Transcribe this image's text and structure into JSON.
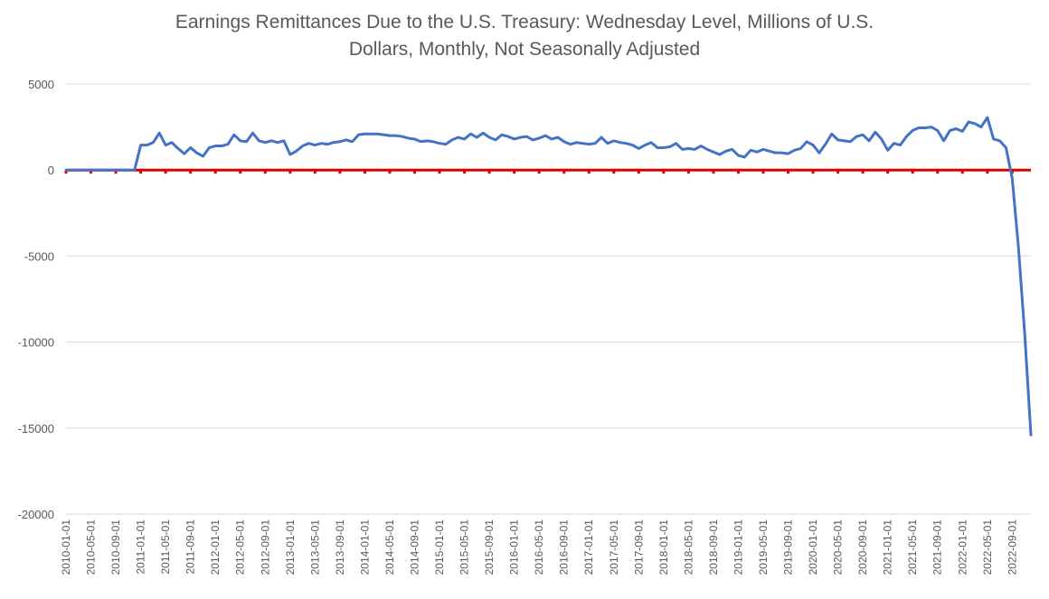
{
  "chart_data": {
    "type": "line",
    "title_line1": "Earnings Remittances Due to the U.S. Treasury: Wednesday Level, Millions of U.S.",
    "title_line2": "Dollars, Monthly, Not Seasonally Adjusted",
    "xlabel": "",
    "ylabel": "",
    "ylim": [
      -20000,
      5000
    ],
    "y_ticks": [
      5000,
      0,
      -5000,
      -10000,
      -15000,
      -20000
    ],
    "x_start": "2010-01-01",
    "x_tick_labels": [
      "2010-01-01",
      "2010-05-01",
      "2010-09-01",
      "2011-01-01",
      "2011-05-01",
      "2011-09-01",
      "2012-01-01",
      "2012-05-01",
      "2012-09-01",
      "2013-01-01",
      "2013-05-01",
      "2013-09-01",
      "2014-01-01",
      "2014-05-01",
      "2014-09-01",
      "2015-01-01",
      "2015-05-01",
      "2015-09-01",
      "2016-01-01",
      "2016-05-01",
      "2016-09-01",
      "2017-01-01",
      "2017-05-01",
      "2017-09-01",
      "2018-01-01",
      "2018-05-01",
      "2018-09-01",
      "2019-01-01",
      "2019-05-01",
      "2019-09-01",
      "2020-01-01",
      "2020-05-01",
      "2020-09-01",
      "2021-01-01",
      "2021-05-01",
      "2021-09-01",
      "2022-01-01",
      "2022-05-01",
      "2022-09-01"
    ],
    "grid": true,
    "legend": "none",
    "colors": {
      "series": "#4472c4",
      "zero_line": "#e00000",
      "grid": "#d9d9d9",
      "text": "#595959"
    },
    "series": [
      {
        "values": [
          0,
          0,
          0,
          0,
          0,
          0,
          0,
          0,
          0,
          0,
          0,
          0,
          1450,
          1450,
          1600,
          2150,
          1450,
          1600,
          1250,
          950,
          1300,
          1000,
          800,
          1300,
          1400,
          1400,
          1500,
          2050,
          1700,
          1650,
          2150,
          1700,
          1600,
          1700,
          1600,
          1700,
          900,
          1100,
          1400,
          1550,
          1450,
          1550,
          1500,
          1600,
          1650,
          1750,
          1650,
          2050,
          2100,
          2100,
          2100,
          2050,
          2000,
          2000,
          1950,
          1850,
          1800,
          1650,
          1700,
          1650,
          1550,
          1500,
          1750,
          1900,
          1800,
          2100,
          1900,
          2150,
          1900,
          1750,
          2050,
          1950,
          1800,
          1900,
          1950,
          1750,
          1850,
          2000,
          1800,
          1900,
          1650,
          1500,
          1600,
          1550,
          1500,
          1550,
          1900,
          1550,
          1700,
          1600,
          1550,
          1450,
          1250,
          1450,
          1600,
          1300,
          1300,
          1350,
          1550,
          1200,
          1250,
          1200,
          1400,
          1200,
          1050,
          900,
          1100,
          1200,
          850,
          750,
          1150,
          1050,
          1200,
          1100,
          1000,
          1000,
          950,
          1150,
          1250,
          1650,
          1450,
          1000,
          1500,
          2100,
          1750,
          1700,
          1650,
          1950,
          2050,
          1700,
          2200,
          1800,
          1150,
          1550,
          1450,
          1950,
          2300,
          2450,
          2450,
          2500,
          2300,
          1700,
          2300,
          2400,
          2250,
          2800,
          2700,
          2500,
          3050,
          1800,
          1700,
          1300,
          -500,
          -4500,
          -9500,
          -15400
        ]
      }
    ]
  }
}
